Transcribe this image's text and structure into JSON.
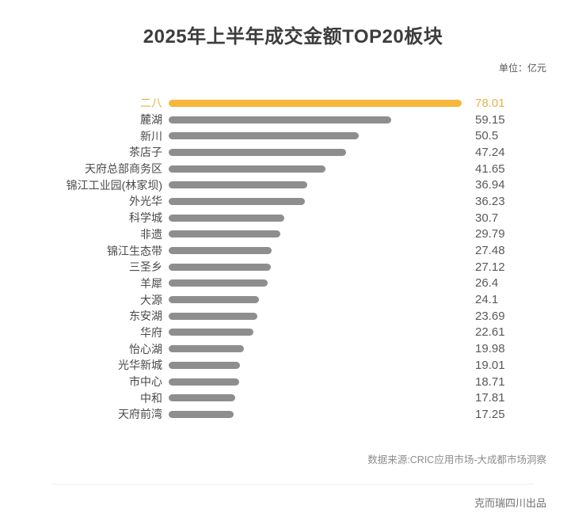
{
  "header": {
    "unit_label": "单位：亿元"
  },
  "chart_data": {
    "type": "bar",
    "orientation": "horizontal",
    "title": "2025年上半年成交金额TOP20板块",
    "unit_label": "单位：亿元",
    "categories": [
      "二八",
      "麓湖",
      "新川",
      "茶店子",
      "天府总部商务区",
      "锦江工业园(林家坝)",
      "外光华",
      "科学城",
      "非遗",
      "锦江生态带",
      "三圣乡",
      "羊犀",
      "大源",
      "东安湖",
      "华府",
      "怡心湖",
      "光华新城",
      "市中心",
      "中和",
      "天府前湾"
    ],
    "values": [
      78.01,
      59.15,
      50.5,
      47.24,
      41.65,
      36.94,
      36.23,
      30.7,
      29.79,
      27.48,
      27.12,
      26.4,
      24.1,
      23.69,
      22.61,
      19.98,
      19.01,
      18.71,
      17.81,
      17.25
    ],
    "xlim": [
      0,
      78.01
    ],
    "value_labels_shown": true,
    "grid": false,
    "legend": false,
    "highlight_index": 0,
    "colors": {
      "highlight_bar": "#f6b73c",
      "highlight_text": "#e2b44a",
      "bar": "#8e8e8e",
      "label_text": "#4a4a4a",
      "value_text": "#595959"
    }
  },
  "footer": {
    "source": "数据来源:CRIC应用市场-大成都市场洞察",
    "publisher": "克而瑞四川出品"
  }
}
